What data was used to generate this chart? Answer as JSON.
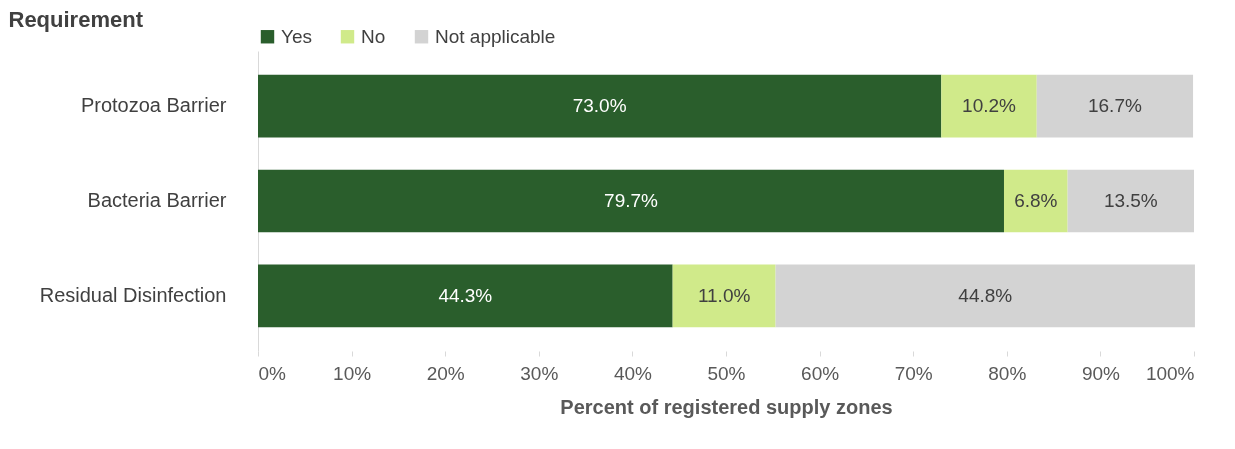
{
  "chart_data": {
    "type": "bar",
    "orientation": "horizontal",
    "stacked": true,
    "ylabel": "Requirement",
    "xlabel": "Percent of registered supply zones",
    "categories": [
      "Protozoa Barrier",
      "Bacteria Barrier",
      "Residual Disinfection"
    ],
    "series": [
      {
        "name": "Yes",
        "color": "#2a5e2c",
        "values": [
          73.0,
          79.7,
          44.3
        ],
        "value_labels": [
          "73.0%",
          "79.7%",
          "44.3%"
        ]
      },
      {
        "name": "No",
        "color": "#d0ea8a",
        "values": [
          10.2,
          6.8,
          11.0
        ],
        "value_labels": [
          "10.2%",
          "6.8%",
          "11.0%"
        ]
      },
      {
        "name": "Not applicable",
        "color": "#d3d3d3",
        "values": [
          16.7,
          13.5,
          44.8
        ],
        "value_labels": [
          "16.7%",
          "13.5%",
          "44.8%"
        ]
      }
    ],
    "xlim": [
      0,
      100
    ],
    "xticks": [
      {
        "value": 0,
        "label": "0%"
      },
      {
        "value": 10,
        "label": "10%"
      },
      {
        "value": 20,
        "label": "20%"
      },
      {
        "value": 30,
        "label": "30%"
      },
      {
        "value": 40,
        "label": "40%"
      },
      {
        "value": 50,
        "label": "50%"
      },
      {
        "value": 60,
        "label": "60%"
      },
      {
        "value": 70,
        "label": "70%"
      },
      {
        "value": 80,
        "label": "80%"
      },
      {
        "value": 90,
        "label": "90%"
      },
      {
        "value": 100,
        "label": "100%"
      }
    ],
    "grid": false,
    "legend": "top"
  }
}
